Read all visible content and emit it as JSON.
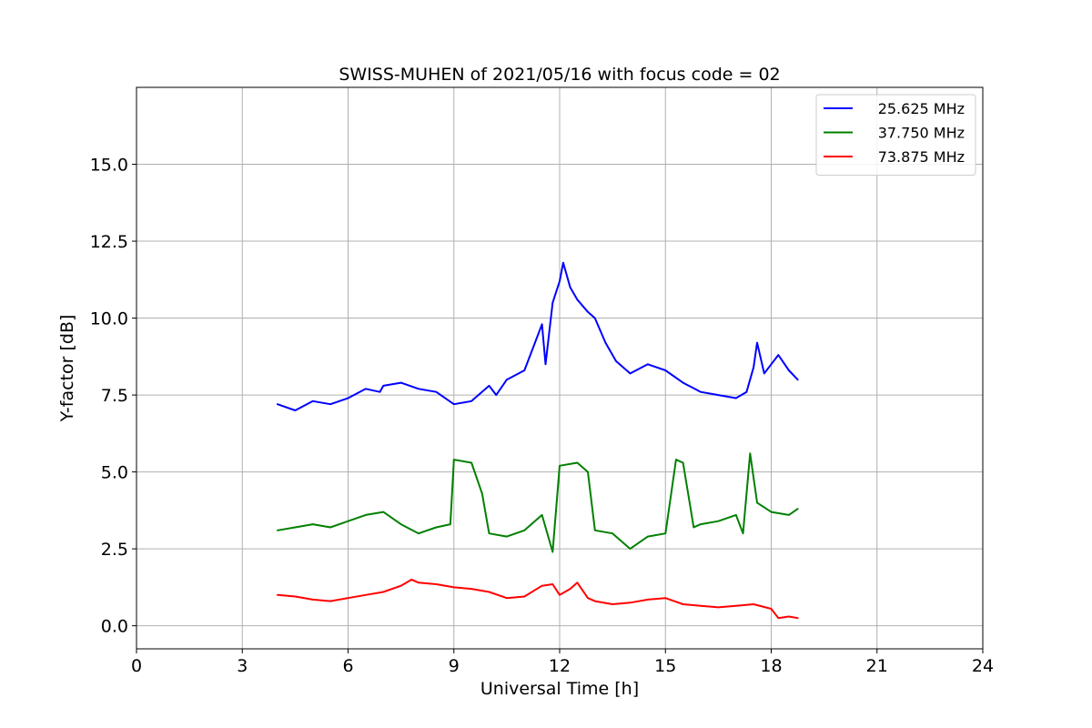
{
  "chart_data": {
    "type": "line",
    "title": "SWISS-MUHEN of 2021/05/16 with focus code = 02",
    "xlabel": "Universal Time [h]",
    "ylabel": "Y-factor [dB]",
    "xlim": [
      0,
      24
    ],
    "ylim": [
      -0.75,
      17.5
    ],
    "xticks": [
      0,
      3,
      6,
      9,
      12,
      15,
      18,
      21,
      24
    ],
    "xtick_labels": [
      "0",
      "3",
      "6",
      "9",
      "12",
      "15",
      "18",
      "21",
      "24"
    ],
    "yticks": [
      0.0,
      2.5,
      5.0,
      7.5,
      10.0,
      12.5,
      15.0
    ],
    "ytick_labels": [
      "0.0",
      "2.5",
      "5.0",
      "7.5",
      "10.0",
      "12.5",
      "15.0"
    ],
    "grid": true,
    "legend_position": "top-right",
    "series": [
      {
        "name": "25.625 MHz",
        "color": "#0000ff",
        "x": [
          4.0,
          4.5,
          5.0,
          5.5,
          6.0,
          6.5,
          6.9,
          7.0,
          7.5,
          8.0,
          8.5,
          9.0,
          9.5,
          10.0,
          10.2,
          10.5,
          11.0,
          11.3,
          11.5,
          11.6,
          11.8,
          12.0,
          12.1,
          12.3,
          12.5,
          12.8,
          13.0,
          13.3,
          13.6,
          14.0,
          14.5,
          15.0,
          15.5,
          16.0,
          16.5,
          17.0,
          17.3,
          17.5,
          17.6,
          17.8,
          18.0,
          18.2,
          18.5,
          18.75
        ],
        "y": [
          7.2,
          7.0,
          7.3,
          7.2,
          7.4,
          7.7,
          7.6,
          7.8,
          7.9,
          7.7,
          7.6,
          7.2,
          7.3,
          7.8,
          7.5,
          8.0,
          8.3,
          9.2,
          9.8,
          8.5,
          10.5,
          11.2,
          11.8,
          11.0,
          10.6,
          10.2,
          10.0,
          9.2,
          8.6,
          8.2,
          8.5,
          8.3,
          7.9,
          7.6,
          7.5,
          7.4,
          7.6,
          8.4,
          9.2,
          8.2,
          8.5,
          8.8,
          8.3,
          8.0
        ]
      },
      {
        "name": "37.750 MHz",
        "color": "#008000",
        "x": [
          4.0,
          4.5,
          5.0,
          5.5,
          6.0,
          6.5,
          7.0,
          7.5,
          8.0,
          8.5,
          8.9,
          9.0,
          9.5,
          9.8,
          10.0,
          10.5,
          11.0,
          11.5,
          11.8,
          12.0,
          12.5,
          12.8,
          13.0,
          13.5,
          14.0,
          14.5,
          15.0,
          15.3,
          15.5,
          15.8,
          16.0,
          16.5,
          17.0,
          17.2,
          17.4,
          17.6,
          18.0,
          18.5,
          18.75
        ],
        "y": [
          3.1,
          3.2,
          3.3,
          3.2,
          3.4,
          3.6,
          3.7,
          3.3,
          3.0,
          3.2,
          3.3,
          5.4,
          5.3,
          4.3,
          3.0,
          2.9,
          3.1,
          3.6,
          2.4,
          5.2,
          5.3,
          5.0,
          3.1,
          3.0,
          2.5,
          2.9,
          3.0,
          5.4,
          5.3,
          3.2,
          3.3,
          3.4,
          3.6,
          3.0,
          5.6,
          4.0,
          3.7,
          3.6,
          3.8
        ]
      },
      {
        "name": "73.875 MHz",
        "color": "#ff0000",
        "x": [
          4.0,
          4.5,
          5.0,
          5.5,
          6.0,
          6.5,
          7.0,
          7.5,
          7.8,
          8.0,
          8.5,
          9.0,
          9.5,
          10.0,
          10.5,
          11.0,
          11.5,
          11.8,
          12.0,
          12.3,
          12.5,
          12.8,
          13.0,
          13.5,
          14.0,
          14.5,
          15.0,
          15.5,
          16.0,
          16.5,
          17.0,
          17.5,
          18.0,
          18.2,
          18.5,
          18.75
        ],
        "y": [
          1.0,
          0.95,
          0.85,
          0.8,
          0.9,
          1.0,
          1.1,
          1.3,
          1.5,
          1.4,
          1.35,
          1.25,
          1.2,
          1.1,
          0.9,
          0.95,
          1.3,
          1.35,
          1.0,
          1.2,
          1.4,
          0.9,
          0.8,
          0.7,
          0.75,
          0.85,
          0.9,
          0.7,
          0.65,
          0.6,
          0.65,
          0.7,
          0.55,
          0.25,
          0.3,
          0.25
        ]
      }
    ]
  }
}
